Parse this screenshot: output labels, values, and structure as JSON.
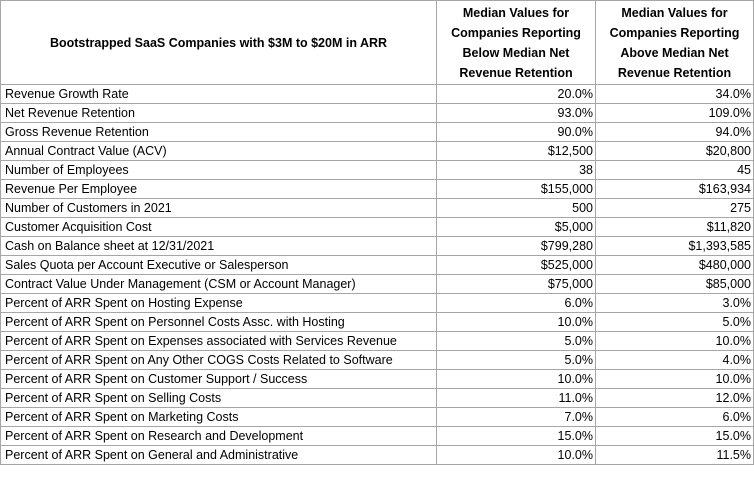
{
  "table": {
    "headers": {
      "metric": "Bootstrapped SaaS Companies with $3M to $20M in ARR",
      "below": "Median Values for Companies Reporting Below Median Net Revenue Retention",
      "above": "Median Values for Companies Reporting Above Median Net Revenue Retention"
    },
    "rows": [
      {
        "metric": "Revenue Growth Rate",
        "below": "20.0%",
        "above": "34.0%"
      },
      {
        "metric": "Net Revenue Retention",
        "below": "93.0%",
        "above": "109.0%"
      },
      {
        "metric": "Gross Revenue Retention",
        "below": "90.0%",
        "above": "94.0%"
      },
      {
        "metric": "Annual Contract Value (ACV)",
        "below": "$12,500",
        "above": "$20,800"
      },
      {
        "metric": "Number of Employees",
        "below": "38",
        "above": "45"
      },
      {
        "metric": "Revenue Per Employee",
        "below": "$155,000",
        "above": "$163,934"
      },
      {
        "metric": "Number of Customers in 2021",
        "below": "500",
        "above": "275"
      },
      {
        "metric": "Customer Acquisition Cost",
        "below": "$5,000",
        "above": "$11,820"
      },
      {
        "metric": "Cash on Balance sheet at 12/31/2021",
        "below": "$799,280",
        "above": "$1,393,585"
      },
      {
        "metric": "Sales Quota per Account Executive or Salesperson",
        "below": "$525,000",
        "above": "$480,000"
      },
      {
        "metric": "Contract Value Under Management (CSM or Account Manager)",
        "below": "$75,000",
        "above": "$85,000"
      },
      {
        "metric": "Percent of ARR Spent on Hosting Expense",
        "below": "6.0%",
        "above": "3.0%"
      },
      {
        "metric": "Percent of ARR Spent on Personnel Costs Assc. with Hosting",
        "below": "10.0%",
        "above": "5.0%"
      },
      {
        "metric": "Percent of ARR Spent on Expenses associated with Services Revenue",
        "below": "5.0%",
        "above": "10.0%"
      },
      {
        "metric": "Percent of ARR Spent on Any Other COGS Costs Related to Software",
        "below": "5.0%",
        "above": "4.0%"
      },
      {
        "metric": "Percent of ARR Spent on Customer Support / Success",
        "below": "10.0%",
        "above": "10.0%"
      },
      {
        "metric": "Percent of ARR Spent on Selling Costs",
        "below": "11.0%",
        "above": "12.0%"
      },
      {
        "metric": "Percent of ARR Spent on Marketing Costs",
        "below": "7.0%",
        "above": "6.0%"
      },
      {
        "metric": "Percent of ARR Spent on Research and Development",
        "below": "15.0%",
        "above": "15.0%"
      },
      {
        "metric": "Percent of ARR Spent on General and Administrative",
        "below": "10.0%",
        "above": "11.5%"
      }
    ]
  }
}
